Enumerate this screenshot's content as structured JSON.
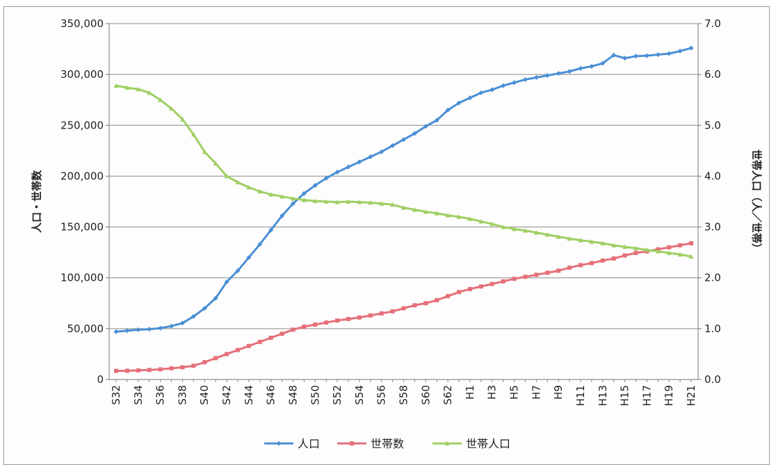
{
  "chart_data": {
    "type": "line",
    "categories": [
      "S32",
      "S33",
      "S34",
      "S35",
      "S36",
      "S37",
      "S38",
      "S39",
      "S40",
      "S41",
      "S42",
      "S43",
      "S44",
      "S45",
      "S46",
      "S47",
      "S48",
      "S49",
      "S50",
      "S51",
      "S52",
      "S53",
      "S54",
      "S55",
      "S56",
      "S57",
      "S58",
      "S59",
      "S60",
      "S61",
      "S62",
      "S63",
      "H1",
      "H2",
      "H3",
      "H4",
      "H5",
      "H6",
      "H7",
      "H8",
      "H9",
      "H10",
      "H11",
      "H12",
      "H13",
      "H14",
      "H15",
      "H16",
      "H17",
      "H18",
      "H19",
      "H20",
      "H21"
    ],
    "x_tick_labels": [
      "S32",
      "S34",
      "S36",
      "S38",
      "S40",
      "S42",
      "S44",
      "S46",
      "S48",
      "S50",
      "S52",
      "S54",
      "S56",
      "S58",
      "S60",
      "S62",
      "H1",
      "H3",
      "H5",
      "H7",
      "H9",
      "H11",
      "H13",
      "H15",
      "H17",
      "H19",
      "H21"
    ],
    "series": [
      {
        "name": "人口",
        "axis": "left",
        "color": "#4a8fd6",
        "values": [
          47000,
          48000,
          49000,
          49500,
          50500,
          52500,
          55500,
          62000,
          70000,
          80000,
          96000,
          107000,
          120000,
          133000,
          147000,
          161000,
          173000,
          183000,
          191000,
          198000,
          204000,
          209000,
          214000,
          219000,
          224000,
          230000,
          236000,
          242000,
          249000,
          255000,
          265000,
          272000,
          277000,
          282000,
          285000,
          289000,
          292000,
          295000,
          297000,
          299000,
          301000,
          303000,
          306000,
          308000,
          311000,
          319000,
          316000,
          318000,
          318500,
          319500,
          320500,
          323000,
          326000
        ]
      },
      {
        "name": "世帯数",
        "axis": "left",
        "color": "#e5707a",
        "values": [
          8500,
          8600,
          9000,
          9400,
          10000,
          11000,
          12000,
          13500,
          17000,
          21000,
          25000,
          29000,
          33000,
          37000,
          41000,
          45000,
          49000,
          52000,
          54000,
          56000,
          58000,
          59500,
          61000,
          63000,
          65000,
          67000,
          70000,
          73000,
          75000,
          78000,
          82000,
          86000,
          89000,
          91500,
          94000,
          96500,
          99000,
          101000,
          103000,
          105000,
          107000,
          110000,
          112500,
          114500,
          117000,
          119000,
          122000,
          124500,
          126000,
          128000,
          130000,
          132000,
          134000
        ]
      },
      {
        "name": "世帯人口",
        "axis": "right",
        "color": "#9fcf63",
        "values": [
          5.78,
          5.74,
          5.71,
          5.64,
          5.5,
          5.33,
          5.12,
          4.82,
          4.48,
          4.25,
          4.0,
          3.88,
          3.78,
          3.7,
          3.64,
          3.6,
          3.56,
          3.53,
          3.51,
          3.5,
          3.49,
          3.5,
          3.49,
          3.48,
          3.46,
          3.44,
          3.38,
          3.34,
          3.3,
          3.27,
          3.23,
          3.2,
          3.16,
          3.11,
          3.06,
          3.0,
          2.96,
          2.93,
          2.89,
          2.85,
          2.81,
          2.77,
          2.74,
          2.71,
          2.68,
          2.64,
          2.61,
          2.58,
          2.55,
          2.52,
          2.49,
          2.46,
          2.42
        ]
      }
    ],
    "ylabel": "人口・世帯数",
    "ylabel2": "世帯人口（人／世帯）",
    "ylim": [
      0,
      350000
    ],
    "y_ticks": [
      0,
      50000,
      100000,
      150000,
      200000,
      250000,
      300000,
      350000
    ],
    "y_tick_labels": [
      "0",
      "50,000",
      "100,000",
      "150,000",
      "200,000",
      "250,000",
      "300,000",
      "350,000"
    ],
    "ylim2": [
      0,
      7
    ],
    "y2_ticks": [
      0,
      1,
      2,
      3,
      4,
      5,
      6,
      7
    ],
    "y2_tick_labels": [
      "0.0",
      "1.0",
      "2.0",
      "3.0",
      "4.0",
      "5.0",
      "6.0",
      "7.0"
    ],
    "grid": true,
    "legend_position": "bottom"
  }
}
